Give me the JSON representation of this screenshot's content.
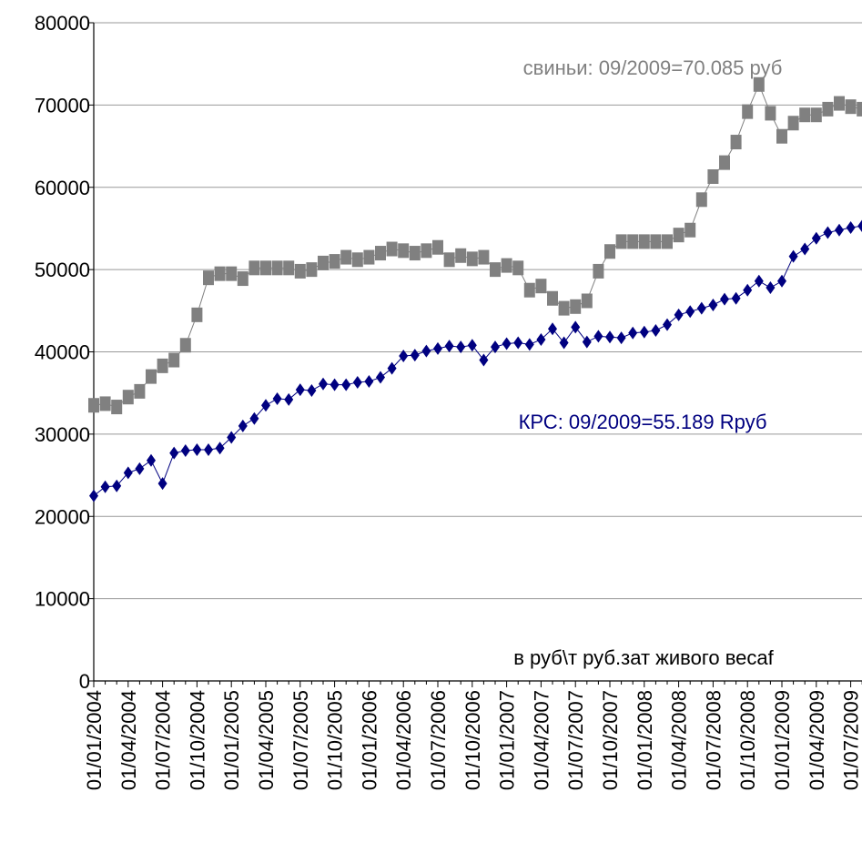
{
  "chart_data": {
    "type": "line",
    "categories": [
      "01/01/2004",
      null,
      null,
      "01/04/2004",
      null,
      null,
      "01/07/2004",
      null,
      null,
      "01/10/2004",
      null,
      null,
      "01/01/2005",
      null,
      null,
      "01/04/2005",
      null,
      null,
      "01/07/2005",
      null,
      null,
      "01/10/2005",
      null,
      null,
      "01/01/2006",
      null,
      null,
      "01/04/2006",
      null,
      null,
      "01/07/2006",
      null,
      null,
      "01/10/2006",
      null,
      null,
      "01/01/2007",
      null,
      null,
      "01/04/2007",
      null,
      null,
      "01/07/2007",
      null,
      null,
      "01/10/2007",
      null,
      null,
      "01/01/2008",
      null,
      null,
      "01/04/2008",
      null,
      null,
      "01/07/2008",
      null,
      null,
      "01/10/2008",
      null,
      null,
      "01/01/2009",
      null,
      null,
      "01/04/2009",
      null,
      null,
      "01/07/2009",
      null
    ],
    "series": [
      {
        "color": "#808080",
        "marker": "square",
        "values": [
          33500,
          33700,
          33300,
          34500,
          35200,
          37000,
          38300,
          39000,
          40800,
          44500,
          49000,
          49500,
          49500,
          48900,
          50200,
          50200,
          50200,
          50200,
          49800,
          50000,
          50800,
          51000,
          51500,
          51200,
          51500,
          52000,
          52500,
          52300,
          52000,
          52300,
          52700,
          51200,
          51700,
          51300,
          51500,
          50000,
          50500,
          50200,
          47500,
          48000,
          46500,
          45300,
          45500,
          46200,
          49800,
          52200,
          53400,
          53400,
          53400,
          53400,
          53400,
          54200,
          54800,
          58500,
          61300,
          63000,
          65500,
          69200,
          72500,
          69000,
          66200,
          67800,
          68800,
          68800,
          69500,
          70200,
          69800,
          69500
        ]
      },
      {
        "color": "#000080",
        "marker": "diamond",
        "values": [
          22500,
          23600,
          23700,
          25300,
          25800,
          26800,
          24000,
          27700,
          28000,
          28100,
          28100,
          28300,
          29600,
          31000,
          31900,
          33500,
          34300,
          34200,
          35400,
          35300,
          36100,
          36000,
          36000,
          36300,
          36400,
          36900,
          38000,
          39500,
          39600,
          40100,
          40400,
          40700,
          40600,
          40800,
          39000,
          40600,
          41000,
          41100,
          40900,
          41500,
          42800,
          41100,
          43000,
          41200,
          41900,
          41800,
          41700,
          42300,
          42400,
          42600,
          43300,
          44500,
          44900,
          45300,
          45700,
          46400,
          46500,
          47500,
          48600,
          47800,
          48600,
          51600,
          52500,
          53800,
          54500,
          54800,
          55100,
          55300
        ]
      }
    ],
    "annotations": [
      {
        "text": "свиньи: 09/2009=70.085  руб",
        "color": "#808080"
      },
      {
        "text": "КРС: 09/2009=55.189 Rруб",
        "color": "#000080"
      },
      {
        "text": "в руб\\т руб.зат живого весаf",
        "color": "#000000"
      }
    ],
    "ylim": [
      0,
      80000
    ],
    "yticks": [
      0,
      10000,
      20000,
      30000,
      40000,
      50000,
      60000,
      70000,
      80000
    ],
    "grid": true
  }
}
